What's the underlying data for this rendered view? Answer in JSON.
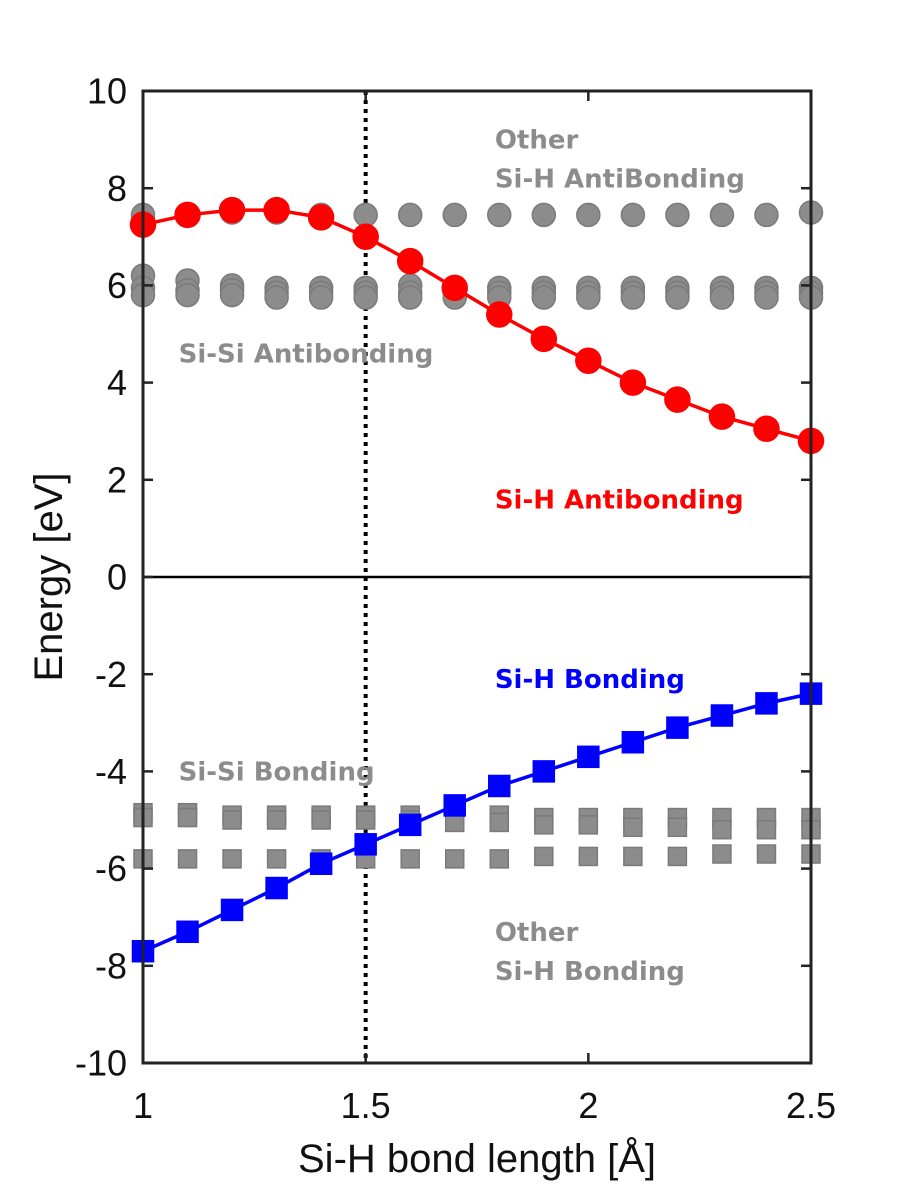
{
  "chart_data": {
    "type": "line",
    "title": "",
    "xlabel": "Si-H bond length [Å]",
    "ylabel": "Energy [eV]",
    "xlim": [
      1,
      2.5
    ],
    "ylim": [
      -10,
      10
    ],
    "xticks": [
      1,
      1.5,
      2,
      2.5
    ],
    "xtick_labels": [
      "1",
      "1.5",
      "2",
      "2.5"
    ],
    "yticks": [
      -10,
      -8,
      -6,
      -4,
      -2,
      0,
      2,
      4,
      6,
      8,
      10
    ],
    "ytick_labels": [
      "-10",
      "-8",
      "-6",
      "-4",
      "-2",
      "0",
      "2",
      "4",
      "6",
      "8",
      "10"
    ],
    "grid": false,
    "reference_lines": [
      {
        "type": "horizontal",
        "value": 0,
        "style": "solid",
        "color": "#000000"
      },
      {
        "type": "vertical",
        "value": 1.5,
        "style": "dotted",
        "color": "#000000"
      }
    ],
    "x": [
      1.0,
      1.1,
      1.2,
      1.3,
      1.4,
      1.5,
      1.6,
      1.7,
      1.8,
      1.9,
      2.0,
      2.1,
      2.2,
      2.3,
      2.4,
      2.5
    ],
    "series": [
      {
        "name": "Other Si-H AntiBonding",
        "marker": "circle",
        "line": false,
        "color": "#8c8c8c",
        "values": [
          7.45,
          7.45,
          7.5,
          7.5,
          7.45,
          7.45,
          7.45,
          7.45,
          7.45,
          7.45,
          7.45,
          7.45,
          7.45,
          7.45,
          7.45,
          7.5
        ]
      },
      {
        "name": "Si-Si Antibonding (upper)",
        "marker": "circle",
        "line": false,
        "color": "#8c8c8c",
        "values": [
          6.2,
          6.1,
          6.0,
          5.95,
          5.95,
          5.95,
          6.0,
          5.95,
          5.95,
          5.95,
          5.95,
          5.95,
          5.95,
          5.95,
          5.95,
          5.95
        ]
      },
      {
        "name": "Si-Si Antibonding (middle)",
        "marker": "circle",
        "line": false,
        "color": "#8c8c8c",
        "values": [
          5.95,
          5.9,
          5.9,
          5.85,
          5.85,
          5.85,
          5.85,
          5.85,
          5.85,
          5.85,
          5.85,
          5.85,
          5.85,
          5.85,
          5.85,
          5.85
        ]
      },
      {
        "name": "Si-Si Antibonding (lower)",
        "marker": "circle",
        "line": false,
        "color": "#8c8c8c",
        "values": [
          5.8,
          5.8,
          5.8,
          5.75,
          5.75,
          5.75,
          5.75,
          5.75,
          5.75,
          5.75,
          5.75,
          5.75,
          5.75,
          5.75,
          5.75,
          5.75
        ]
      },
      {
        "name": "Si-Si Bonding (upper)",
        "marker": "square",
        "line": false,
        "color": "#8c8c8c",
        "values": [
          -4.85,
          -4.85,
          -4.9,
          -4.9,
          -4.9,
          -4.9,
          -4.9,
          -4.9,
          -4.9,
          -4.95,
          -4.95,
          -4.95,
          -4.95,
          -4.95,
          -4.95,
          -4.95
        ]
      },
      {
        "name": "Si-Si Bonding (lower)",
        "marker": "square",
        "line": false,
        "color": "#8c8c8c",
        "values": [
          -4.95,
          -4.95,
          -5.0,
          -5.0,
          -5.0,
          -5.0,
          -5.0,
          -5.05,
          -5.05,
          -5.1,
          -5.1,
          -5.15,
          -5.15,
          -5.2,
          -5.2,
          -5.2
        ]
      },
      {
        "name": "Other Si-H Bonding",
        "marker": "square",
        "line": false,
        "color": "#8c8c8c",
        "values": [
          -5.8,
          -5.8,
          -5.8,
          -5.8,
          -5.8,
          -5.8,
          -5.8,
          -5.8,
          -5.8,
          -5.75,
          -5.75,
          -5.75,
          -5.75,
          -5.7,
          -5.7,
          -5.7
        ]
      },
      {
        "name": "Si-H Antibonding",
        "marker": "circle",
        "line": true,
        "color": "#ff0000",
        "values": [
          7.25,
          7.45,
          7.55,
          7.55,
          7.4,
          7.0,
          6.5,
          5.95,
          5.4,
          4.9,
          4.45,
          4.0,
          3.65,
          3.3,
          3.05,
          2.8
        ]
      },
      {
        "name": "Si-H Bonding",
        "marker": "square",
        "line": true,
        "color": "#0000ff",
        "values": [
          -7.7,
          -7.3,
          -6.85,
          -6.4,
          -5.9,
          -5.5,
          -5.1,
          -4.7,
          -4.3,
          -4.0,
          -3.7,
          -3.4,
          -3.1,
          -2.85,
          -2.6,
          -2.4
        ]
      }
    ],
    "annotations": [
      {
        "text": "Other",
        "x": 1.79,
        "y": 9.0,
        "color": "#8c8c8c"
      },
      {
        "text": "Si-H AntiBonding",
        "x": 1.79,
        "y": 8.2,
        "color": "#8c8c8c"
      },
      {
        "text": "Si-Si Antibonding",
        "x": 1.08,
        "y": 4.6,
        "color": "#8c8c8c"
      },
      {
        "text": "Si-H Antibonding",
        "x": 1.79,
        "y": 1.6,
        "color": "#ff0000"
      },
      {
        "text": "Si-H Bonding",
        "x": 1.79,
        "y": -2.1,
        "color": "#0000ff"
      },
      {
        "text": "Si-Si Bonding",
        "x": 1.08,
        "y": -4.0,
        "color": "#8c8c8c"
      },
      {
        "text": "Other",
        "x": 1.79,
        "y": -7.3,
        "color": "#8c8c8c"
      },
      {
        "text": "Si-H Bonding",
        "x": 1.79,
        "y": -8.1,
        "color": "#8c8c8c"
      }
    ]
  }
}
